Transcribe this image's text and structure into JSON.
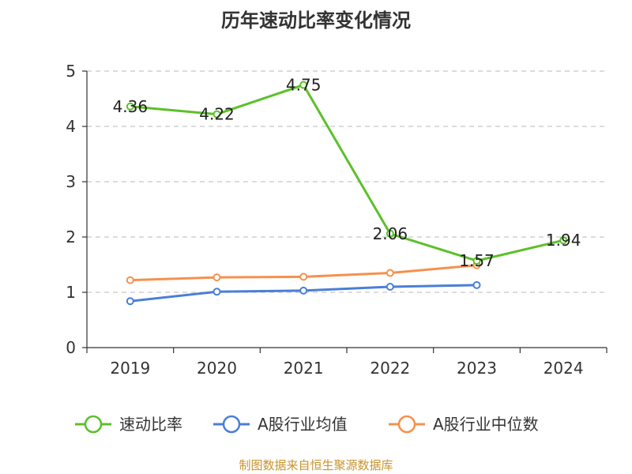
{
  "chart_data": {
    "type": "line",
    "title": "历年速动比率变化情况",
    "categories": [
      "2019",
      "2020",
      "2021",
      "2022",
      "2023",
      "2024"
    ],
    "ylim": [
      0,
      5
    ],
    "yticks": [
      0,
      1,
      2,
      3,
      4,
      5
    ],
    "grid": true,
    "legend_position": "bottom",
    "series": [
      {
        "name": "速动比率",
        "color": "#5cc02a",
        "values": [
          4.36,
          4.22,
          4.75,
          2.06,
          1.57,
          1.94
        ],
        "labels": [
          "4.36",
          "4.22",
          "4.75",
          "2.06",
          "1.57",
          "1.94"
        ]
      },
      {
        "name": "A股行业均值",
        "color": "#4a7fd6",
        "values": [
          0.84,
          1.01,
          1.03,
          1.1,
          1.13,
          null
        ]
      },
      {
        "name": "A股行业中位数",
        "color": "#f5914e",
        "values": [
          1.22,
          1.27,
          1.28,
          1.35,
          1.49,
          null
        ]
      }
    ]
  },
  "footer": {
    "source": "制图数据来自恒生聚源数据库"
  }
}
